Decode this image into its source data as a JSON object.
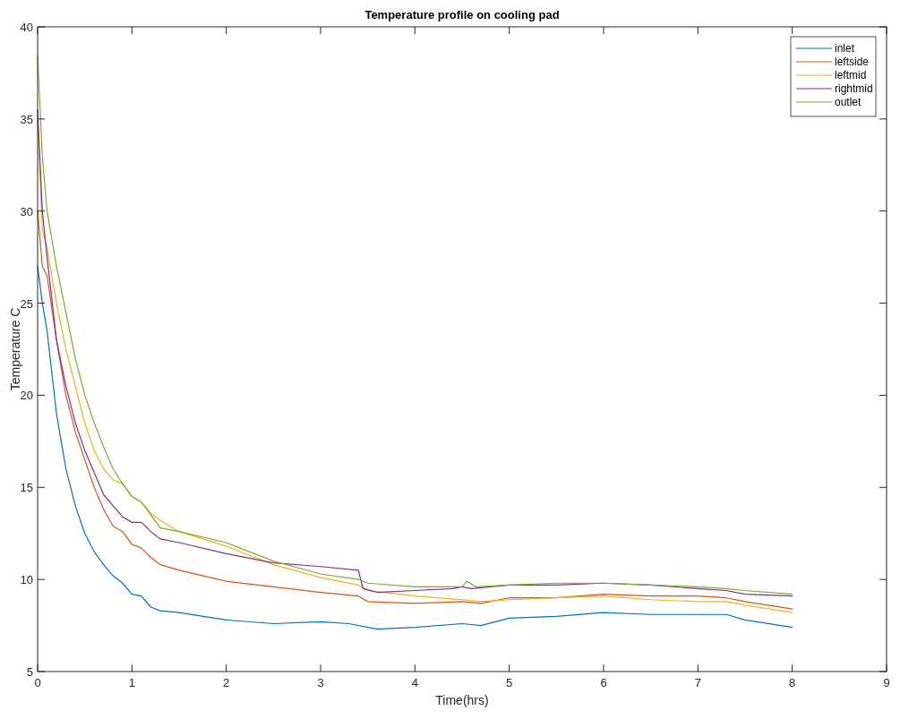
{
  "chart_data": {
    "type": "line",
    "title": "Temperature profile on cooling pad",
    "xlabel": "Time(hrs)",
    "ylabel": "Temperature C",
    "xlim": [
      0,
      9
    ],
    "ylim": [
      5,
      40
    ],
    "xticks": [
      0,
      1,
      2,
      3,
      4,
      5,
      6,
      7,
      8,
      9
    ],
    "yticks": [
      5,
      10,
      15,
      20,
      25,
      30,
      35,
      40
    ],
    "grid": false,
    "legend": "top right",
    "line_style": "solid",
    "marker": "none",
    "series": [
      {
        "name": "inlet",
        "color": "#0072bd",
        "x": [
          0,
          0.05,
          0.1,
          0.2,
          0.3,
          0.4,
          0.5,
          0.6,
          0.7,
          0.8,
          0.9,
          1.0,
          1.1,
          1.2,
          1.3,
          1.5,
          2,
          2.5,
          3,
          3.3,
          3.6,
          4,
          4.5,
          4.7,
          5,
          5.5,
          6,
          6.5,
          7,
          7.3,
          7.5,
          8
        ],
        "values": [
          27,
          25,
          23.5,
          19,
          16,
          14,
          12.5,
          11.5,
          10.8,
          10.2,
          9.8,
          9.2,
          9.1,
          8.5,
          8.3,
          8.2,
          7.8,
          7.6,
          7.7,
          7.6,
          7.3,
          7.4,
          7.6,
          7.5,
          7.9,
          8.0,
          8.2,
          8.1,
          8.1,
          8.1,
          7.8,
          7.4
        ]
      },
      {
        "name": "leftside",
        "color": "#d95319",
        "x": [
          0,
          0.05,
          0.1,
          0.2,
          0.3,
          0.4,
          0.5,
          0.6,
          0.7,
          0.8,
          0.9,
          1.0,
          1.1,
          1.2,
          1.3,
          1.5,
          2,
          2.5,
          3,
          3.4,
          3.5,
          4,
          4.5,
          4.7,
          5,
          5.5,
          6,
          6.5,
          7,
          7.3,
          7.5,
          8
        ],
        "values": [
          30,
          27,
          26.5,
          23,
          20,
          18,
          16.5,
          15,
          13.8,
          12.9,
          12.6,
          11.9,
          11.7,
          11.2,
          10.8,
          10.5,
          9.9,
          9.6,
          9.3,
          9.1,
          8.8,
          8.7,
          8.8,
          8.7,
          9.0,
          9.0,
          9.2,
          9.1,
          9.1,
          9.0,
          8.8,
          8.4
        ]
      },
      {
        "name": "leftmid",
        "color": "#edb120",
        "x": [
          0,
          0.05,
          0.1,
          0.2,
          0.3,
          0.4,
          0.5,
          0.6,
          0.7,
          0.8,
          0.9,
          1.0,
          1.1,
          1.2,
          1.3,
          1.5,
          2,
          2.5,
          3,
          3.4,
          3.5,
          4,
          4.5,
          4.7,
          5,
          5.5,
          6,
          6.5,
          7,
          7.3,
          7.5,
          8
        ],
        "values": [
          35,
          29,
          28,
          25,
          22.5,
          20.5,
          18.5,
          17,
          16,
          15.4,
          15.2,
          14.5,
          14.2,
          13.6,
          13.2,
          12.6,
          11.8,
          10.8,
          10.1,
          9.7,
          9.4,
          9.1,
          8.9,
          8.8,
          8.9,
          9.0,
          9.1,
          8.9,
          8.8,
          8.8,
          8.6,
          8.2
        ]
      },
      {
        "name": "rightmid",
        "color": "#7e2f8e",
        "x": [
          0,
          0.05,
          0.1,
          0.2,
          0.3,
          0.4,
          0.5,
          0.6,
          0.7,
          0.8,
          0.9,
          1.0,
          1.1,
          1.2,
          1.3,
          1.5,
          2,
          2.5,
          3,
          3.4,
          3.45,
          3.6,
          4,
          4.4,
          4.5,
          4.6,
          5,
          5.5,
          6,
          6.5,
          7,
          7.3,
          7.5,
          8
        ],
        "values": [
          35.5,
          30,
          27.5,
          23,
          20.5,
          18.5,
          17,
          15.8,
          14.6,
          14.0,
          13.4,
          13.1,
          13.1,
          12.6,
          12.2,
          12.0,
          11.4,
          10.9,
          10.7,
          10.5,
          9.5,
          9.3,
          9.4,
          9.5,
          9.6,
          9.5,
          9.7,
          9.7,
          9.8,
          9.7,
          9.5,
          9.4,
          9.2,
          9.1
        ]
      },
      {
        "name": "outlet",
        "color": "#77ac30",
        "x": [
          0,
          0.05,
          0.1,
          0.2,
          0.3,
          0.4,
          0.5,
          0.6,
          0.7,
          0.8,
          0.9,
          1.0,
          1.1,
          1.2,
          1.3,
          1.5,
          2,
          2.5,
          3,
          3.4,
          3.5,
          4,
          4.5,
          4.55,
          4.65,
          5,
          5.5,
          6,
          6.5,
          7,
          7.3,
          7.5,
          8
        ],
        "values": [
          38.4,
          33,
          30,
          27,
          24.5,
          22,
          20,
          18.5,
          17.2,
          16,
          15.2,
          14.5,
          14.2,
          13.5,
          12.8,
          12.6,
          12.0,
          11.0,
          10.3,
          10.0,
          9.8,
          9.6,
          9.6,
          9.9,
          9.6,
          9.7,
          9.8,
          9.8,
          9.7,
          9.6,
          9.5,
          9.4,
          9.2
        ]
      }
    ]
  }
}
